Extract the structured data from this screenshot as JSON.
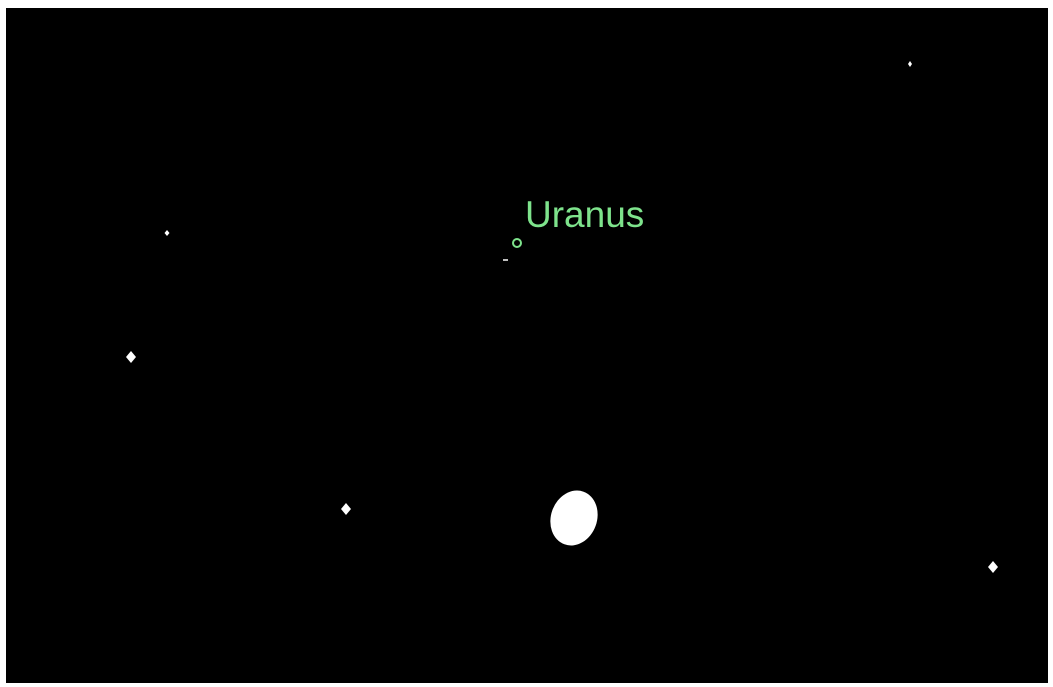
{
  "sky_view": {
    "planet_label": "Uranus"
  }
}
